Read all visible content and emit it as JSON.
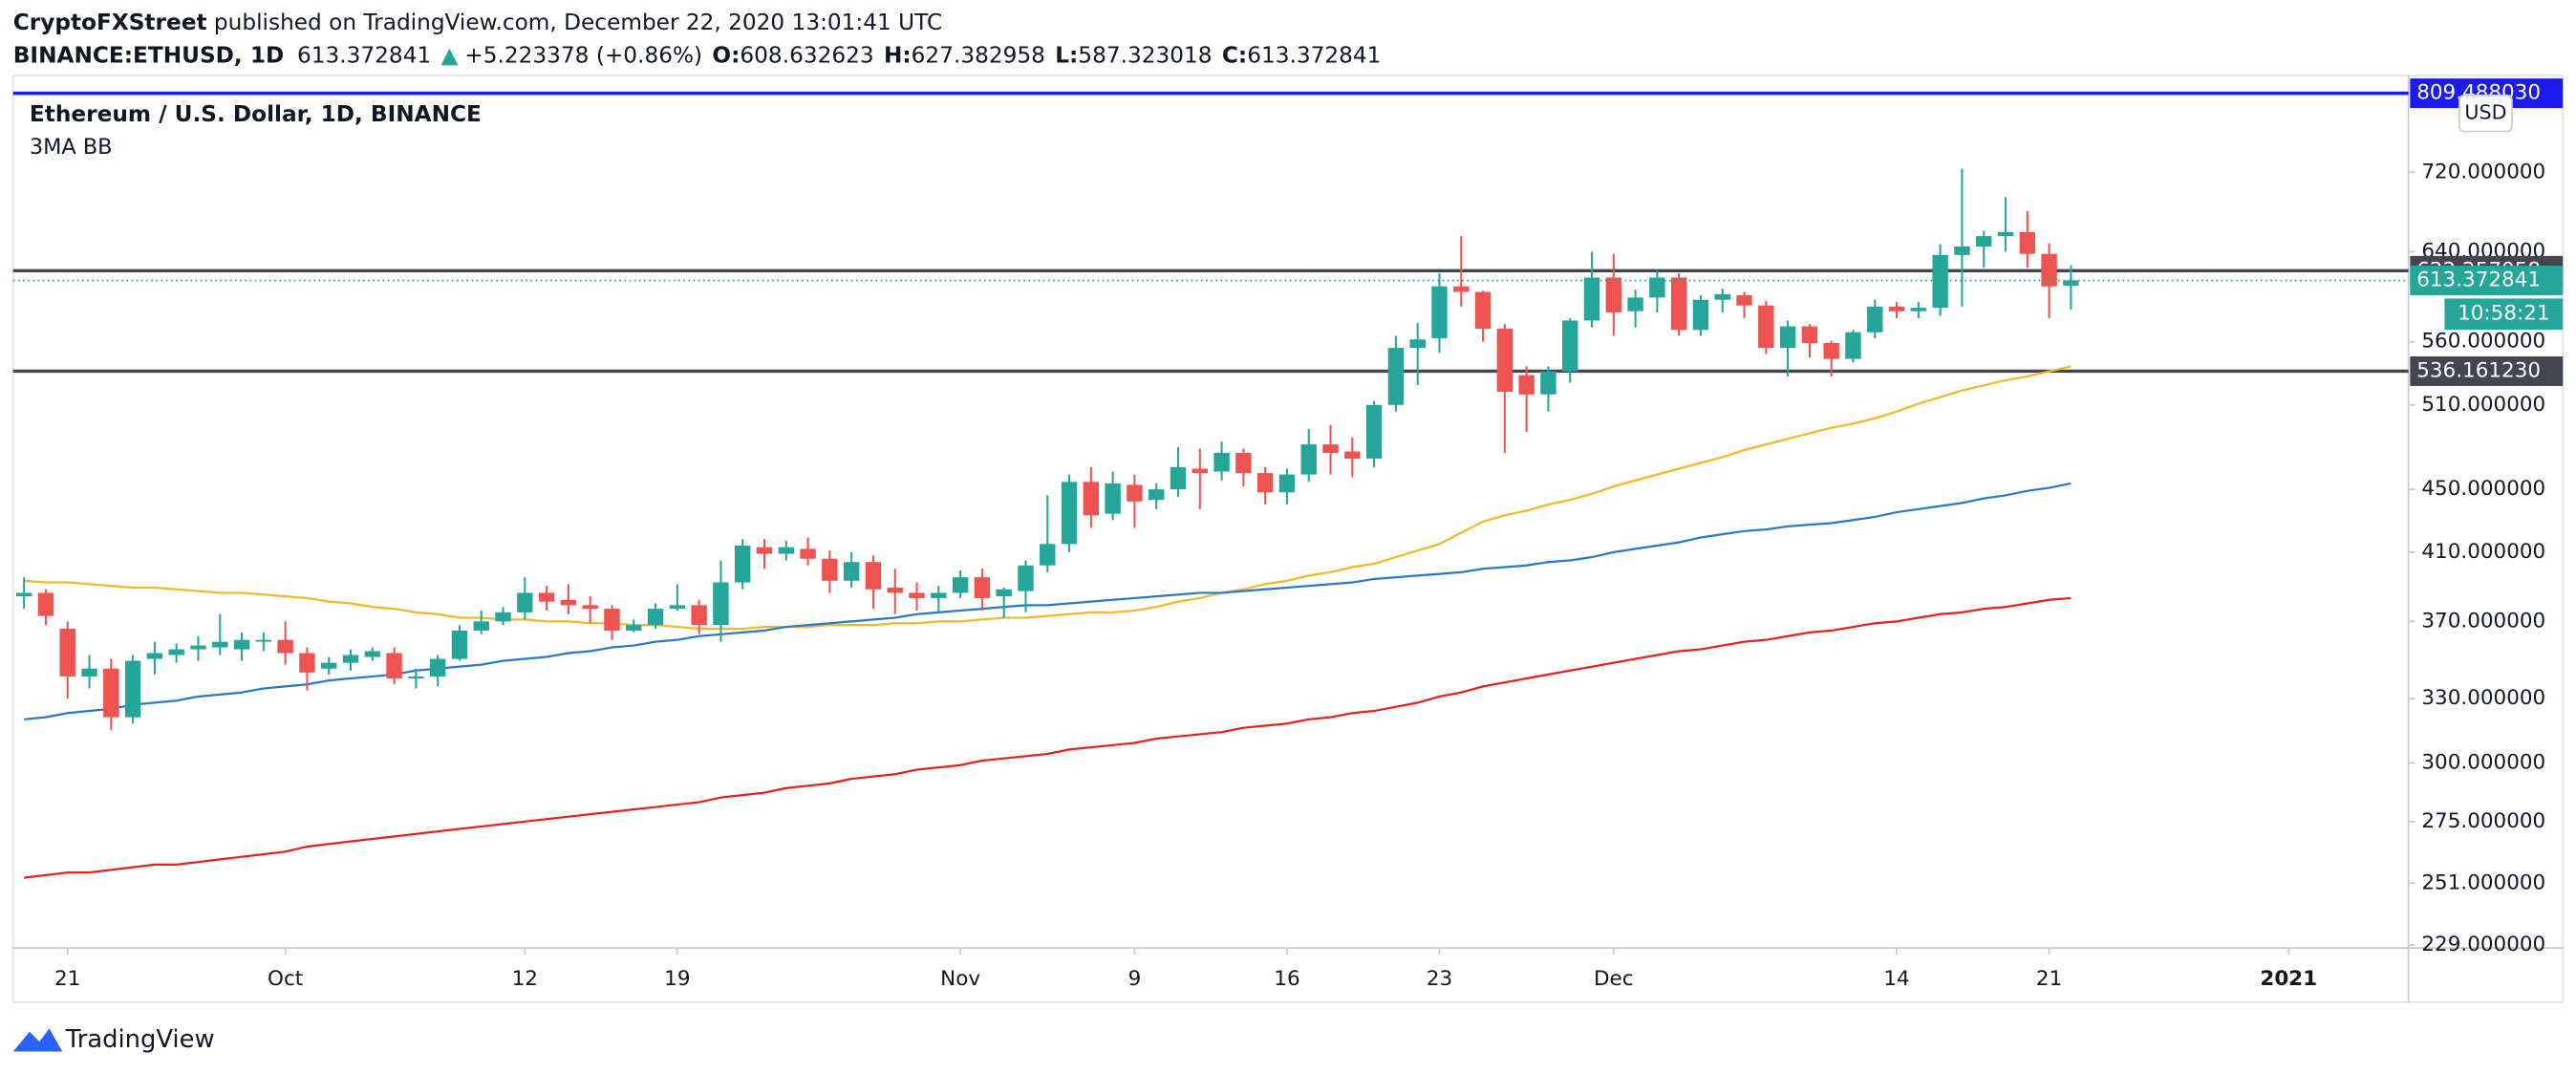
{
  "header": {
    "author": "CryptoFXStreet",
    "published": " published on TradingView.com, December 22, 2020 13:01:41 UTC",
    "symbol": "BINANCE:ETHUSD, 1D",
    "arrow": "▲",
    "change": "+5.223378 (+0.86%)",
    "o_label": "O:",
    "h_label": "H:",
    "l_label": "L:",
    "c_label": "C:"
  },
  "footer": {
    "brand": "TradingView"
  },
  "chart_data": {
    "type": "candlestick",
    "title": "Ethereum / U.S. Dollar, 1D, BINANCE",
    "subtitle": "3MA BB",
    "currency": "USD",
    "countdown": "10:58:21",
    "log_scale": true,
    "grid": false,
    "ylim": [
      228,
      813
    ],
    "yticks": [
      {
        "value": 229,
        "label": "229.000000"
      },
      {
        "value": 251,
        "label": "251.000000"
      },
      {
        "value": 275,
        "label": "275.000000"
      },
      {
        "value": 300,
        "label": "300.000000"
      },
      {
        "value": 330,
        "label": "330.000000"
      },
      {
        "value": 370,
        "label": "370.000000"
      },
      {
        "value": 410,
        "label": "410.000000"
      },
      {
        "value": 450,
        "label": "450.000000"
      },
      {
        "value": 510,
        "label": "510.000000"
      },
      {
        "value": 560,
        "label": "560.000000"
      },
      {
        "value": 640,
        "label": "640.000000"
      },
      {
        "value": 720,
        "label": "720.000000"
      }
    ],
    "categories": [
      null,
      null,
      "21",
      null,
      null,
      null,
      null,
      null,
      null,
      null,
      null,
      null,
      "Oct",
      null,
      null,
      null,
      null,
      null,
      null,
      null,
      null,
      null,
      null,
      "12",
      null,
      null,
      null,
      null,
      null,
      null,
      "19",
      null,
      null,
      null,
      null,
      null,
      null,
      null,
      null,
      null,
      null,
      null,
      null,
      "Nov",
      null,
      null,
      null,
      null,
      null,
      null,
      null,
      "9",
      null,
      null,
      null,
      null,
      null,
      null,
      "16",
      null,
      null,
      null,
      null,
      null,
      null,
      "23",
      null,
      null,
      null,
      null,
      null,
      null,
      null,
      "Dec",
      null,
      null,
      null,
      null,
      null,
      null,
      null,
      null,
      null,
      null,
      null,
      null,
      "14",
      null,
      null,
      null,
      null,
      null,
      null,
      "21",
      null,
      null,
      null,
      null,
      null,
      null,
      null,
      null,
      null,
      null,
      "2021",
      null,
      null,
      null,
      null,
      null
    ],
    "ohlc": {
      "up_color": "#26a69a",
      "down_color": "#ef5350",
      "open": [
        384,
        386,
        366,
        341,
        345,
        321,
        350,
        352,
        355,
        356,
        355,
        359,
        360,
        353,
        345,
        348,
        351,
        353,
        340,
        341,
        350,
        365,
        370,
        375,
        386,
        382,
        379,
        377,
        365,
        368,
        377,
        379,
        368,
        392,
        413,
        409,
        412,
        406,
        393,
        404,
        389,
        386,
        383,
        386,
        395,
        384,
        387,
        402,
        415,
        455,
        434,
        453,
        443,
        450,
        464,
        462,
        475,
        461,
        448,
        460,
        481,
        476,
        471,
        510,
        555,
        563,
        608,
        603,
        571,
        533,
        518,
        536,
        578,
        616,
        586,
        598,
        616,
        570,
        596,
        600,
        591,
        555,
        573,
        559,
        546,
        568,
        590,
        586,
        589,
        637,
        645,
        655,
        659,
        638,
        608.632623,
        null,
        null,
        null,
        null,
        null,
        null,
        null,
        null,
        null,
        null,
        null,
        null,
        null,
        null,
        null
      ],
      "high": [
        395,
        388,
        370,
        352,
        350,
        352,
        359,
        358,
        362,
        374,
        364,
        364,
        370,
        356,
        351,
        355,
        356,
        356,
        345,
        352,
        368,
        376,
        378,
        395,
        390,
        391,
        384,
        379,
        371,
        380,
        391,
        382,
        405,
        418,
        418,
        417,
        419,
        411,
        410,
        408,
        400,
        392,
        390,
        399,
        400,
        389,
        405,
        446,
        460,
        465,
        462,
        460,
        454,
        479,
        478,
        483,
        478,
        465,
        464,
        492,
        495,
        486,
        513,
        565,
        576,
        620,
        655,
        604,
        575,
        540,
        540,
        580,
        640,
        638,
        605,
        622,
        620,
        600,
        606,
        603,
        595,
        578,
        575,
        561,
        570,
        596,
        594,
        594,
        647,
        724,
        660,
        694,
        680,
        648,
        627.382958,
        null,
        null,
        null,
        null,
        null,
        null,
        null,
        null,
        null,
        null,
        null,
        null,
        null,
        null,
        null
      ],
      "low": [
        377,
        368,
        330,
        335,
        315,
        318,
        342,
        348,
        349,
        352,
        349,
        354,
        347,
        334,
        342,
        344,
        349,
        337,
        335,
        336,
        349,
        363,
        368,
        371,
        376,
        374,
        369,
        360,
        364,
        366,
        376,
        363,
        359,
        388,
        400,
        405,
        402,
        386,
        389,
        377,
        374,
        376,
        375,
        383,
        376,
        372,
        375,
        398,
        410,
        425,
        430,
        425,
        437,
        445,
        437,
        456,
        452,
        440,
        440,
        455,
        460,
        458,
        465,
        505,
        525,
        551,
        590,
        560,
        475,
        490,
        505,
        527,
        572,
        565,
        572,
        585,
        565,
        565,
        585,
        580,
        550,
        532,
        547,
        532,
        543,
        563,
        580,
        580,
        582,
        590,
        625,
        640,
        625,
        580,
        587.323018,
        null,
        null,
        null,
        null,
        null,
        null,
        null,
        null,
        null,
        null,
        null,
        null,
        null,
        null,
        null
      ],
      "close": [
        386,
        373,
        341,
        345,
        321,
        349,
        353,
        355,
        357,
        359,
        360,
        360,
        353,
        343,
        348,
        352,
        354,
        340,
        341,
        350,
        365,
        370,
        375,
        386,
        381,
        379,
        377,
        365,
        368,
        377,
        379,
        368,
        392,
        414,
        409,
        413,
        406,
        393,
        404,
        388,
        386,
        383,
        386,
        395,
        383,
        388,
        402,
        415,
        455,
        433,
        454,
        442,
        450,
        465,
        461,
        475,
        461,
        448,
        460,
        481,
        475,
        471,
        510,
        555,
        562,
        608,
        603,
        571,
        520,
        518,
        536,
        578,
        616,
        585,
        598,
        616,
        570,
        596,
        601,
        591,
        555,
        573,
        559,
        546,
        568,
        590,
        586,
        589,
        637,
        645,
        655,
        659,
        638,
        608,
        613.372841,
        null,
        null,
        null,
        null,
        null,
        null,
        null,
        null,
        null,
        null,
        null,
        null,
        null,
        null,
        null
      ]
    },
    "lines": [
      {
        "color": "#f5b72a",
        "values": [
          393,
          392,
          392,
          391,
          390,
          389,
          389,
          388,
          387,
          386,
          386,
          385,
          384,
          383,
          381,
          380,
          378,
          377,
          375,
          374,
          372,
          372,
          371,
          371,
          370,
          370,
          369,
          369,
          368,
          368,
          367,
          366,
          366,
          366,
          367,
          367,
          367,
          368,
          368,
          368,
          369,
          369,
          370,
          370,
          371,
          372,
          372,
          373,
          374,
          375,
          375,
          376,
          378,
          381,
          383,
          386,
          388,
          391,
          393,
          396,
          398,
          401,
          403,
          407,
          411,
          415,
          422,
          429,
          433,
          436,
          440,
          443,
          447,
          452,
          456,
          460,
          464,
          468,
          472,
          477,
          481,
          485,
          489,
          493,
          496,
          500,
          505,
          511,
          516,
          521,
          525,
          529,
          532,
          536,
          540,
          null,
          null,
          null,
          null,
          null,
          null,
          null,
          null,
          null,
          null,
          null,
          null,
          null,
          null,
          null
        ]
      },
      {
        "color": "#2b78c9",
        "values": [
          320,
          321,
          323,
          324,
          325,
          327,
          328,
          329,
          331,
          332,
          333,
          335,
          336,
          337,
          339,
          340,
          341,
          342,
          344,
          345,
          346,
          347,
          349,
          350,
          351,
          353,
          354,
          356,
          357,
          359,
          360,
          362,
          363,
          364,
          365,
          367,
          368,
          369,
          370,
          371,
          372,
          374,
          375,
          376,
          377,
          378,
          379,
          379,
          380,
          381,
          382,
          383,
          384,
          385,
          386,
          386,
          387,
          388,
          389,
          390,
          391,
          392,
          394,
          395,
          396,
          397,
          398,
          400,
          401,
          402,
          404,
          405,
          407,
          410,
          412,
          414,
          416,
          419,
          421,
          423,
          424,
          426,
          427,
          428,
          430,
          432,
          435,
          437,
          439,
          441,
          444,
          446,
          449,
          451,
          454,
          null,
          null,
          null,
          null,
          null,
          null,
          null,
          null,
          null,
          null,
          null,
          null,
          null,
          null,
          null
        ]
      },
      {
        "color": "#e8201e",
        "values": [
          253,
          254,
          255,
          255,
          256,
          257,
          258,
          258,
          259,
          260,
          261,
          262,
          263,
          265,
          266,
          267,
          268,
          269,
          270,
          271,
          272,
          273,
          274,
          275,
          276,
          277,
          278,
          279,
          280,
          281,
          282,
          283,
          285,
          286,
          287,
          289,
          290,
          291,
          293,
          294,
          295,
          297,
          298,
          299,
          301,
          302,
          303,
          304,
          306,
          307,
          308,
          309,
          311,
          312,
          313,
          314,
          316,
          317,
          318,
          320,
          321,
          323,
          324,
          326,
          328,
          331,
          333,
          336,
          338,
          340,
          342,
          344,
          346,
          348,
          350,
          352,
          354,
          355,
          357,
          359,
          360,
          362,
          364,
          365,
          367,
          369,
          370,
          372,
          374,
          375,
          377,
          378,
          380,
          382,
          383,
          null,
          null,
          null,
          null,
          null,
          null,
          null,
          null,
          null,
          null,
          null,
          null,
          null,
          null,
          null
        ]
      }
    ],
    "hlines": [
      {
        "value": 622.257058,
        "color": "#434651"
      },
      {
        "value": {
          "value": 536.16123,
          "label": "536.161230"
        },
        "color": "#434651"
      },
      {
        "value": {
          "value": 809.48803,
          "label": "809.488030"
        },
        "color": "#1b1bef"
      }
    ]
  }
}
